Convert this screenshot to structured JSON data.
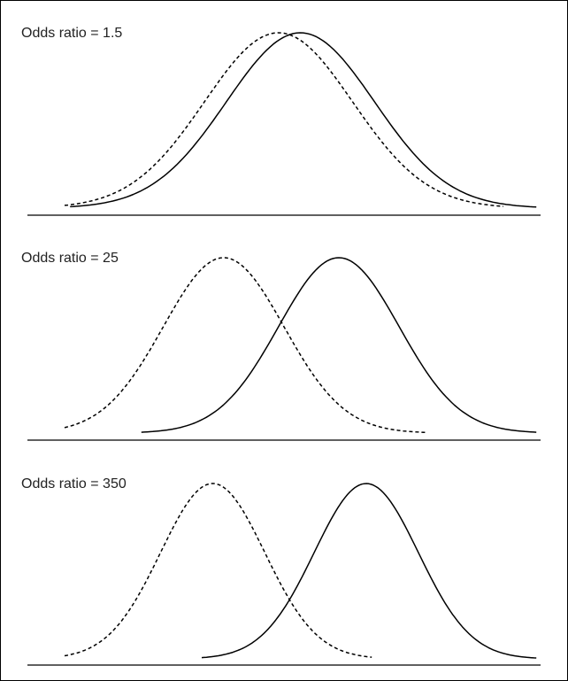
{
  "figure": {
    "panels": [
      {
        "label": "Odds ratio = 1.5",
        "odds_ratio": 1.5,
        "curves": [
          {
            "style": "dashed",
            "mean": 4.9,
            "sd": 1.35,
            "x_range": [
              1.0,
              9.0
            ]
          },
          {
            "style": "solid",
            "mean": 5.3,
            "sd": 1.35,
            "x_range": [
              1.1,
              9.6
            ]
          }
        ]
      },
      {
        "label": "Odds ratio = 25",
        "odds_ratio": 25,
        "curves": [
          {
            "style": "dashed",
            "mean": 3.9,
            "sd": 1.1,
            "x_range": [
              1.0,
              7.6
            ]
          },
          {
            "style": "solid",
            "mean": 6.0,
            "sd": 1.1,
            "x_range": [
              2.4,
              9.6
            ]
          }
        ]
      },
      {
        "label": "Odds ratio = 350",
        "odds_ratio": 350,
        "curves": [
          {
            "style": "dashed",
            "mean": 3.7,
            "sd": 0.95,
            "x_range": [
              1.0,
              6.6
            ]
          },
          {
            "style": "solid",
            "mean": 6.5,
            "sd": 0.95,
            "x_range": [
              3.5,
              9.6
            ]
          }
        ]
      }
    ],
    "x_domain": [
      0,
      10
    ],
    "colors": {
      "line": "#000000",
      "text": "#222222",
      "background": "#ffffff"
    }
  }
}
